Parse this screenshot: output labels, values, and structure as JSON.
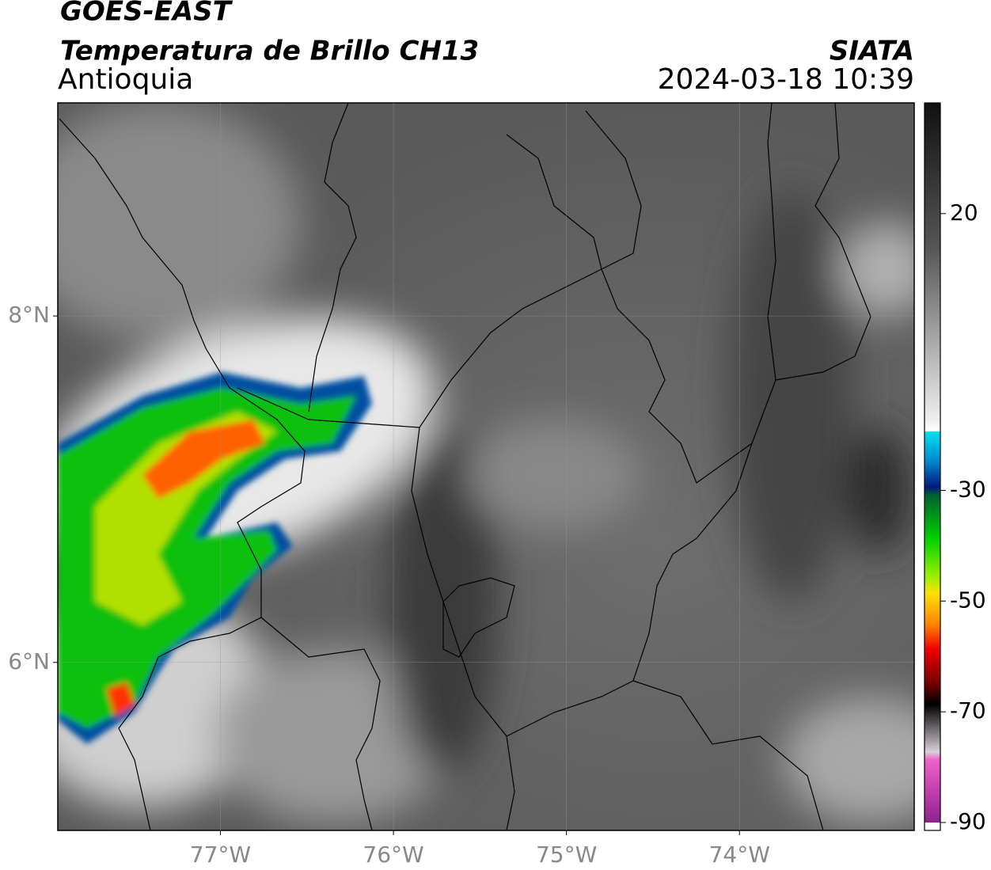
{
  "header": {
    "satellite": "GOES-EAST",
    "product": "Temperatura de Brillo CH13",
    "region": "Antioquia",
    "source": "SIATA",
    "datetime": "2024-03-18 10:39"
  },
  "map": {
    "xlim": [
      -77.94,
      -72.99
    ],
    "ylim": [
      5.03,
      9.23
    ],
    "xticks": [
      {
        "value": -77,
        "label": "77°W"
      },
      {
        "value": -76,
        "label": "76°W"
      },
      {
        "value": -75,
        "label": "75°W"
      },
      {
        "value": -74,
        "label": "74°W"
      }
    ],
    "yticks": [
      {
        "value": 8,
        "label": "8°N"
      },
      {
        "value": 6,
        "label": "6°N"
      }
    ],
    "grid": true
  },
  "colorbar": {
    "lim": [
      -90,
      40
    ],
    "ticks": [
      20,
      -30,
      -50,
      -70,
      -90
    ]
  }
}
